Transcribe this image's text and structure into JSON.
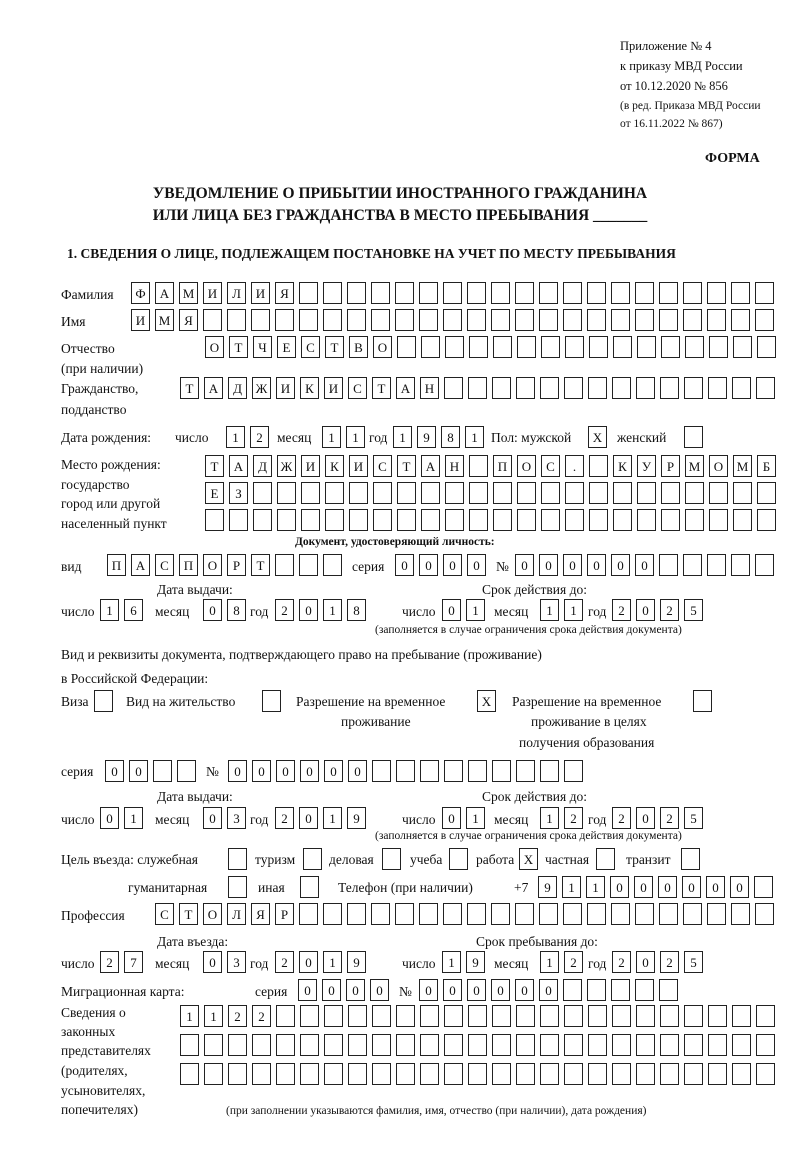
{
  "header": {
    "appendix": "Приложение № 4",
    "order": "к приказу МВД России",
    "order_date": "от 10.12.2020 № 856",
    "revision1": "(в ред. Приказа МВД России",
    "revision2": "от 16.11.2022 № 867)",
    "form_label": "ФОРМА",
    "title1": "УВЕДОМЛЕНИЕ О ПРИБЫТИИ ИНОСТРАННОГО ГРАЖДАНИНА",
    "title2": "ИЛИ ЛИЦА БЕЗ ГРАЖДАНСТВА В МЕСТО ПРЕБЫВАНИЯ _______"
  },
  "section1": {
    "heading": "1. СВЕДЕНИЯ О ЛИЦЕ, ПОДЛЕЖАЩЕМ ПОСТАНОВКЕ НА УЧЕТ ПО МЕСТУ ПРЕБЫВАНИЯ",
    "surname": {
      "label": "Фамилия",
      "value": "ФАМИЛИЯ"
    },
    "name": {
      "label": "Имя",
      "value": "ИМЯ"
    },
    "patronymic": {
      "label1": "Отчество",
      "label2": "(при наличии)",
      "value": "ОТЧЕСТВО"
    },
    "citizenship": {
      "label1": "Гражданство,",
      "label2": "подданство",
      "value": "ТАДЖИКИСТАН"
    },
    "birth_date": {
      "label": "Дата рождения:",
      "day_label": "число",
      "day": "12",
      "month_label": "месяц",
      "month": "11",
      "year_label": "год",
      "year": "1981"
    },
    "sex": {
      "label": "Пол: мужской",
      "male": "X",
      "female_label": "женский",
      "female": ""
    },
    "birth_place": {
      "label1": "Место рождения:",
      "label2": "государство",
      "label3": "город или другой",
      "label4": "населенный пункт",
      "row1": "ТАДЖИКИСТАН ПОС. КУРМОМБ",
      "row2": "ЕЗ",
      "row3": ""
    },
    "id_document": {
      "heading": "Документ, удостоверяющий личность:",
      "kind_label": "вид",
      "kind": "ПАСПОРТ",
      "series_label": "серия",
      "series": "0000",
      "number_label": "№",
      "number": "000000",
      "issue_label": "Дата выдачи:",
      "issue_day": "16",
      "issue_month": "08",
      "issue_year": "2018",
      "valid_label": "Срок действия до:",
      "valid_day": "01",
      "valid_month": "11",
      "valid_year": "2025",
      "note": "(заполняется в случае ограничения срока действия документа)"
    },
    "stay_right": {
      "label1": "Вид и реквизиты документа, подтверждающего право на пребывание (проживание)",
      "label2": "в Российской Федерации:",
      "visa_label": "Виза",
      "visa": "",
      "residence_label": "Вид на жительство",
      "residence": "",
      "temp_label1": "Разрешение на временное",
      "temp_label2": "проживание",
      "temp": "X",
      "edu_label1": "Разрешение на временное",
      "edu_label2": "проживание в целях",
      "edu_label3": "получения образования",
      "edu": "",
      "series_label": "серия",
      "series": "00",
      "number_label": "№",
      "number": "000000",
      "issue_label": "Дата выдачи:",
      "issue_day": "01",
      "issue_month": "03",
      "issue_year": "2019",
      "valid_label": "Срок действия до:",
      "valid_day": "01",
      "valid_month": "12",
      "valid_year": "2025",
      "note": "(заполняется в случае ограничения срока действия документа)"
    },
    "purpose": {
      "label": "Цель въезда: служебная",
      "official": "",
      "tourism_label": "туризм",
      "tourism": "",
      "business_label": "деловая",
      "business": "",
      "study_label": "учеба",
      "study": "",
      "work_label": "работа",
      "work": "X",
      "private_label": "частная",
      "private": "",
      "transit_label": "транзит",
      "transit": "",
      "humanitarian_label": "гуманитарная",
      "humanitarian": "",
      "other_label": "иная",
      "other": ""
    },
    "phone": {
      "label": "Телефон (при наличии)",
      "prefix": "+7",
      "value": "911000000"
    },
    "profession": {
      "label": "Профессия",
      "value": "СТОЛЯР"
    },
    "entry": {
      "entry_label": "Дата въезда:",
      "entry_day": "27",
      "entry_month": "03",
      "entry_year": "2019",
      "stay_label": "Срок пребывания до:",
      "stay_day": "19",
      "stay_month": "12",
      "stay_year": "2025"
    },
    "migration_card": {
      "label": "Миграционная карта:",
      "series_label": "серия",
      "series": "0000",
      "number_label": "№",
      "number": "000000"
    },
    "representatives": {
      "label1": "Сведения о",
      "label2": "законных",
      "label3": "представителях",
      "label4": "(родителях,",
      "label5": "усыновителях,",
      "label6": "попечителях)",
      "row1": "1122",
      "row2": "",
      "row3": "",
      "note": "(при заполнении указываются фамилия, имя, отчество (при наличии), дата рождения)"
    },
    "common": {
      "day_label": "число",
      "month_label": "месяц",
      "year_label": "год"
    }
  }
}
